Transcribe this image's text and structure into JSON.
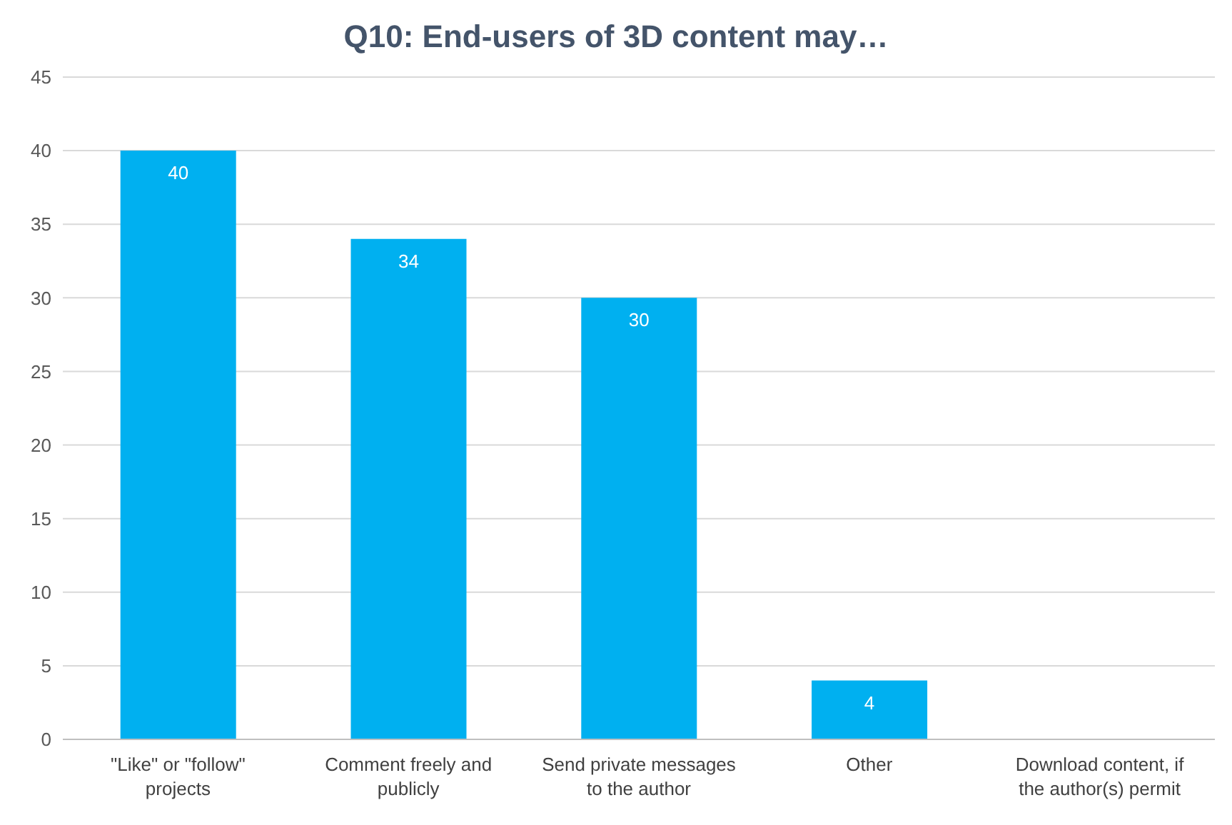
{
  "chart_data": {
    "type": "bar",
    "title": "Q10: End-users of 3D content may…",
    "categories": [
      "\"Like\" or \"follow\" projects",
      "Comment freely and publicly",
      "Send private messages to the author",
      "Other",
      "Download content, if the author(s) permit"
    ],
    "values": [
      40,
      34,
      30,
      4,
      null
    ],
    "color": "#00b0f0",
    "ylim": [
      0,
      45
    ],
    "yticks": [
      0,
      5,
      10,
      15,
      20,
      25,
      30,
      35,
      40,
      45
    ],
    "grid": "y",
    "data_labels": true
  }
}
